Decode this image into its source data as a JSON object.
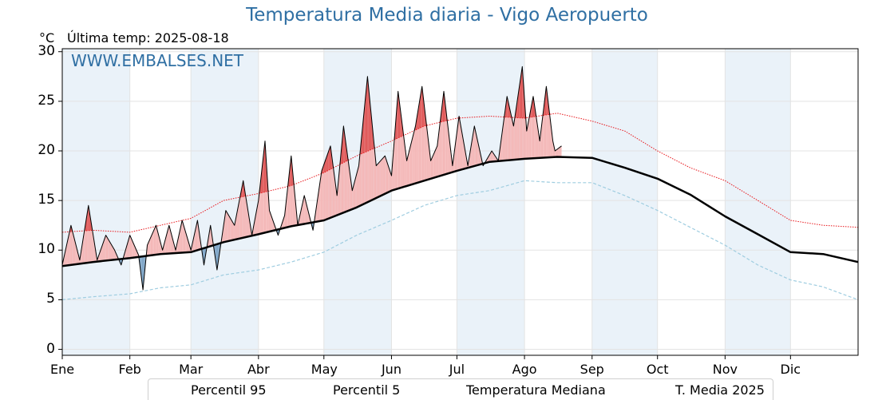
{
  "title": "Temperatura Media diaria - Vigo Aeropuerto",
  "units_label": "°C",
  "last_temp_label": "Última temp: 2025-08-18",
  "watermark": "WWW.EMBALSES.NET",
  "colors": {
    "title": "#2f6fa3",
    "p95": "#e8161b",
    "p5": "#9fcde0",
    "median": "#000000",
    "media2025": "#000000",
    "above_fill": "#f4b8b8",
    "above_extreme_fill": "#e05a5a",
    "below_fill": "#7fa6c8",
    "month_band": "#eaf2f9"
  },
  "chart_data": {
    "type": "line",
    "title": "Temperatura Media diaria - Vigo Aeropuerto",
    "ylabel": "°C",
    "ylim": [
      -0.6,
      30.3
    ],
    "yticks": [
      "0",
      "5",
      "10",
      "15",
      "20",
      "25",
      "30"
    ],
    "grid": true,
    "legend_position": "bottom",
    "months": [
      "Ene",
      "Feb",
      "Mar",
      "Abr",
      "May",
      "Jun",
      "Jul",
      "Ago",
      "Sep",
      "Oct",
      "Nov",
      "Dic"
    ],
    "month_start_days": [
      1,
      32,
      60,
      91,
      121,
      152,
      182,
      213,
      244,
      274,
      305,
      335
    ],
    "x_range_days": [
      1,
      366
    ],
    "series": [
      {
        "name": "Percentil 95",
        "style": "dotted",
        "day": [
          1,
          15,
          32,
          46,
          60,
          75,
          91,
          106,
          121,
          136,
          152,
          167,
          182,
          197,
          213,
          228,
          244,
          259,
          274,
          289,
          305,
          320,
          335,
          350,
          366
        ],
        "values": [
          11.8,
          12.0,
          11.8,
          12.5,
          13.2,
          15.0,
          15.7,
          16.5,
          17.8,
          19.5,
          21.0,
          22.5,
          23.3,
          23.5,
          23.3,
          23.8,
          23.0,
          22.0,
          20.0,
          18.3,
          17.0,
          15.0,
          13.0,
          12.5,
          12.3
        ]
      },
      {
        "name": "Percentil 5",
        "style": "dashed",
        "day": [
          1,
          15,
          32,
          46,
          60,
          75,
          91,
          106,
          121,
          136,
          152,
          167,
          182,
          197,
          213,
          228,
          244,
          259,
          274,
          289,
          305,
          320,
          335,
          350,
          366
        ],
        "values": [
          5.0,
          5.3,
          5.6,
          6.2,
          6.5,
          7.5,
          8.0,
          8.8,
          9.8,
          11.5,
          13.0,
          14.5,
          15.5,
          16.0,
          17.0,
          16.8,
          16.8,
          15.5,
          14.0,
          12.3,
          10.5,
          8.5,
          7.0,
          6.3,
          5.0
        ]
      },
      {
        "name": "Temperatura Mediana",
        "style": "thick",
        "day": [
          1,
          15,
          32,
          46,
          60,
          75,
          91,
          106,
          121,
          136,
          152,
          167,
          182,
          197,
          213,
          228,
          244,
          259,
          274,
          289,
          305,
          320,
          335,
          350,
          366
        ],
        "values": [
          8.4,
          8.8,
          9.2,
          9.6,
          9.8,
          10.8,
          11.6,
          12.4,
          13.0,
          14.3,
          16.0,
          17.0,
          18.0,
          18.9,
          19.2,
          19.4,
          19.3,
          18.3,
          17.2,
          15.6,
          13.4,
          11.6,
          9.8,
          9.6,
          8.8
        ]
      },
      {
        "name": "T. Media 2025",
        "style": "thin",
        "day": [
          1,
          5,
          9,
          13,
          17,
          21,
          25,
          28,
          32,
          36,
          38,
          40,
          44,
          47,
          50,
          53,
          56,
          60,
          63,
          66,
          69,
          72,
          76,
          80,
          84,
          88,
          91,
          94,
          96,
          100,
          103,
          106,
          109,
          112,
          116,
          120,
          124,
          127,
          130,
          134,
          137,
          141,
          145,
          149,
          152,
          155,
          159,
          163,
          166,
          170,
          173,
          176,
          180,
          183,
          187,
          190,
          194,
          198,
          201,
          205,
          208,
          212,
          214,
          217,
          220,
          223,
          226,
          227,
          230
        ],
        "values": [
          8.5,
          12.5,
          9.0,
          14.5,
          9.0,
          11.5,
          10.0,
          8.5,
          11.5,
          9.5,
          6.0,
          10.5,
          12.5,
          10.0,
          12.5,
          10.0,
          13.0,
          10.0,
          13.0,
          8.5,
          12.5,
          8.0,
          14.0,
          12.5,
          17.0,
          11.5,
          15.0,
          21.0,
          14.0,
          11.5,
          13.5,
          19.5,
          12.5,
          15.5,
          12.0,
          18.0,
          20.5,
          15.5,
          22.5,
          16.0,
          18.5,
          27.5,
          18.5,
          19.5,
          17.5,
          26.0,
          19.0,
          22.5,
          26.5,
          19.0,
          20.5,
          26.0,
          18.5,
          23.5,
          18.5,
          22.5,
          18.5,
          20.0,
          19.0,
          25.5,
          22.5,
          28.5,
          22.0,
          25.5,
          21.0,
          26.5,
          21.0,
          20.0,
          20.5
        ]
      }
    ]
  },
  "legend": [
    {
      "label": "Percentil 95"
    },
    {
      "label": "Percentil 5"
    },
    {
      "label": "Temperatura Mediana"
    },
    {
      "label": "T. Media 2025"
    }
  ]
}
